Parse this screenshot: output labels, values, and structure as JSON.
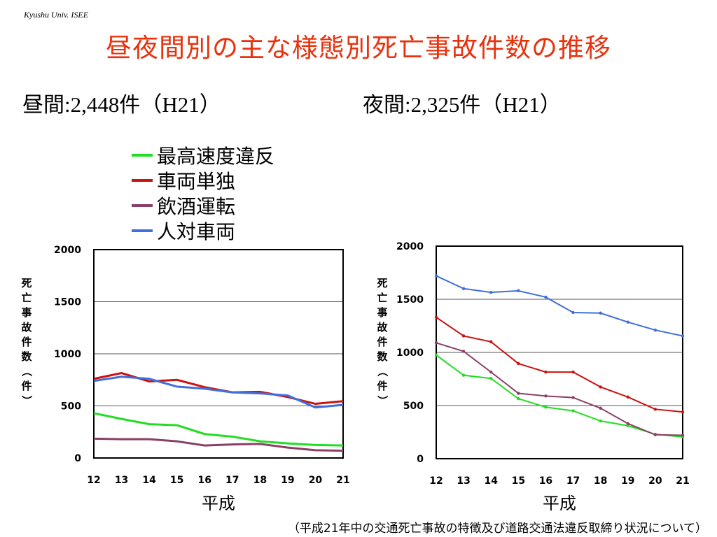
{
  "header": {
    "credit": "Kyushu Univ. ISEE",
    "title": "昼夜間別の主な様態別死亡事故件数の推移"
  },
  "subtitles": {
    "day": {
      "prefix": "昼間",
      "sep": ":",
      "number": "2,448",
      "unit": "件",
      "year": "（H21）"
    },
    "night": {
      "prefix": "夜間",
      "sep": ":",
      "number": "2,325",
      "unit": "件",
      "year": "（H21）"
    }
  },
  "legend": [
    {
      "label": "最高速度違反",
      "color": "#22dd22"
    },
    {
      "label": "車両単独",
      "color": "#cc1111"
    },
    {
      "label": "飲酒運転",
      "color": "#8b3f66"
    },
    {
      "label": "人対車両",
      "color": "#3f6fdd"
    }
  ],
  "chart_data": [
    {
      "type": "line",
      "name": "昼間",
      "x": [
        "12",
        "13",
        "14",
        "15",
        "16",
        "17",
        "18",
        "19",
        "20",
        "21"
      ],
      "xlabel": "平成",
      "ylabel": "死亡事故件数（件）",
      "ylim": [
        0,
        2000
      ],
      "yticks": [
        0,
        500,
        1000,
        1500,
        2000
      ],
      "grid": true,
      "series": [
        {
          "name": "最高速度違反",
          "color": "#22dd22",
          "values": [
            430,
            375,
            325,
            315,
            230,
            205,
            160,
            140,
            125,
            120
          ]
        },
        {
          "name": "車両単独",
          "color": "#cc1111",
          "values": [
            760,
            815,
            735,
            750,
            680,
            630,
            635,
            585,
            520,
            545
          ]
        },
        {
          "name": "飲酒運転",
          "color": "#8b3f66",
          "values": [
            185,
            180,
            180,
            160,
            120,
            130,
            135,
            100,
            75,
            70
          ]
        },
        {
          "name": "人対車両",
          "color": "#3f6fdd",
          "values": [
            740,
            780,
            760,
            685,
            665,
            630,
            620,
            600,
            485,
            510
          ]
        }
      ]
    },
    {
      "type": "line",
      "name": "夜間",
      "x": [
        "12",
        "13",
        "14",
        "15",
        "16",
        "17",
        "18",
        "19",
        "20",
        "21"
      ],
      "xlabel": "平成",
      "ylabel": "死亡事故件数（件）",
      "ylim": [
        0,
        2000
      ],
      "yticks": [
        0,
        500,
        1000,
        1500,
        2000
      ],
      "grid": true,
      "series": [
        {
          "name": "最高速度違反",
          "color": "#22dd22",
          "values": [
            975,
            785,
            755,
            565,
            485,
            450,
            355,
            310,
            230,
            205
          ]
        },
        {
          "name": "車両単独",
          "color": "#cc1111",
          "values": [
            1330,
            1155,
            1100,
            895,
            815,
            815,
            675,
            580,
            465,
            440
          ]
        },
        {
          "name": "飲酒運転",
          "color": "#8b3f66",
          "values": [
            1090,
            1010,
            815,
            615,
            590,
            575,
            475,
            330,
            225,
            220
          ]
        },
        {
          "name": "人対車両",
          "color": "#3f6fdd",
          "values": [
            1720,
            1600,
            1565,
            1580,
            1520,
            1375,
            1370,
            1285,
            1210,
            1155
          ]
        }
      ]
    }
  ],
  "footnote": "（平成21年中の交通死亡事故の特徴及び道路交通法違反取締り状況について）"
}
